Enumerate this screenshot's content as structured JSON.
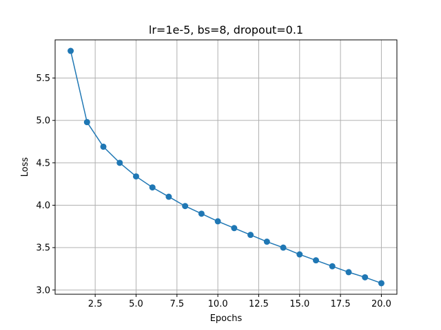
{
  "chart_data": {
    "type": "line",
    "title": "lr=1e-5, bs=8, dropout=0.1",
    "xlabel": "Epochs",
    "ylabel": "Loss",
    "xlim": [
      0.05,
      20.95
    ],
    "ylim": [
      2.95,
      5.95
    ],
    "xticks": [
      2.5,
      5.0,
      7.5,
      10.0,
      12.5,
      15.0,
      17.5,
      20.0
    ],
    "xtick_labels": [
      "2.5",
      "5.0",
      "7.5",
      "10.0",
      "12.5",
      "15.0",
      "17.5",
      "20.0"
    ],
    "yticks": [
      3.0,
      3.5,
      4.0,
      4.5,
      5.0,
      5.5
    ],
    "ytick_labels": [
      "3.0",
      "3.5",
      "4.0",
      "4.5",
      "5.0",
      "5.5"
    ],
    "grid": true,
    "colors": {
      "series": "#1f77b4",
      "grid": "#b0b0b0",
      "axes": "#000000"
    },
    "series": [
      {
        "x": [
          1,
          2,
          3,
          4,
          5,
          6,
          7,
          8,
          9,
          10,
          11,
          12,
          13,
          14,
          15,
          16,
          17,
          18,
          19,
          20
        ],
        "values": [
          5.82,
          4.98,
          4.69,
          4.5,
          4.34,
          4.21,
          4.1,
          3.99,
          3.9,
          3.81,
          3.73,
          3.65,
          3.57,
          3.5,
          3.42,
          3.35,
          3.28,
          3.21,
          3.15,
          3.08
        ],
        "marker": "circle"
      }
    ]
  }
}
